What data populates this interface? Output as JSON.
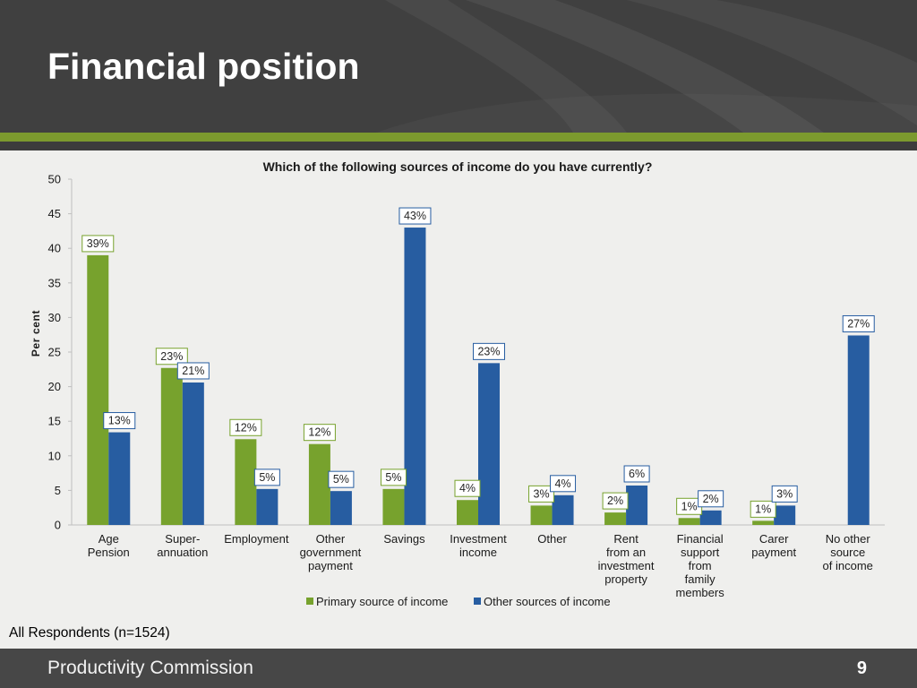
{
  "header": {
    "title": "Financial position"
  },
  "theme": {
    "header_bg": "#404040",
    "accent": "#7c9a2e",
    "footer_bg": "#474747",
    "background": "#efefed"
  },
  "chart_data": {
    "type": "bar",
    "title": "Which of the following sources of income do you have currently?",
    "ylabel": "Per cent",
    "ylim": [
      0,
      50
    ],
    "yticks": [
      0,
      5,
      10,
      15,
      20,
      25,
      30,
      35,
      40,
      45,
      50
    ],
    "grid": false,
    "legend_position": "bottom",
    "categories": [
      [
        "Age",
        "Pension"
      ],
      [
        "Super-",
        "annuation"
      ],
      [
        "Employment"
      ],
      [
        "Other",
        "government",
        "payment"
      ],
      [
        "Savings"
      ],
      [
        "Investment",
        "income"
      ],
      [
        "Other"
      ],
      [
        "Rent",
        "from an",
        "investment",
        "property"
      ],
      [
        "Financial",
        "support",
        "from",
        "family",
        "members"
      ],
      [
        "Carer",
        "payment"
      ],
      [
        "No other",
        "source",
        "of income"
      ]
    ],
    "series": [
      {
        "name": "Primary source of income",
        "color": "#77a22d",
        "values": [
          39.0,
          22.7,
          12.4,
          11.7,
          5.2,
          3.6,
          2.8,
          1.8,
          1.0,
          0.6,
          null
        ],
        "labels": [
          "39%",
          "23%",
          "12%",
          "12%",
          "5%",
          "4%",
          "3%",
          "2%",
          "1%",
          "1%",
          null
        ]
      },
      {
        "name": "Other sources of income",
        "color": "#275da1",
        "values": [
          13.4,
          20.6,
          5.2,
          4.9,
          43.0,
          23.4,
          4.3,
          5.7,
          2.1,
          2.8,
          27.4
        ],
        "labels": [
          "13%",
          "21%",
          "5%",
          "5%",
          "43%",
          "23%",
          "4%",
          "6%",
          "2%",
          "3%",
          "27%"
        ]
      }
    ]
  },
  "note": "All Respondents (n=1524)",
  "footer": {
    "organisation": "Productivity Commission",
    "page_number": "9"
  }
}
